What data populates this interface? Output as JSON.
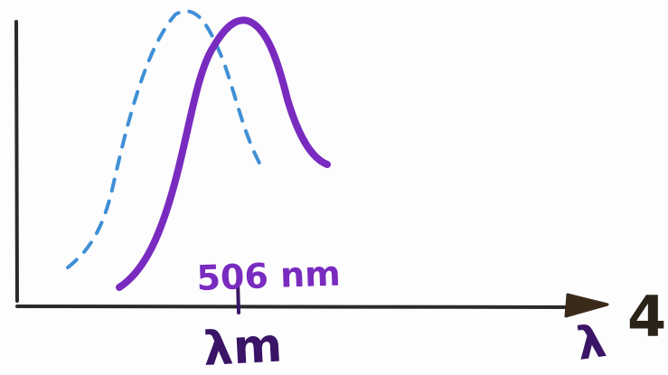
{
  "colors": {
    "background": "#fdfdfd",
    "axes": "#2a2a2a",
    "dashed_curve": "#3f8fd6",
    "solid_curve": "#7a2bbf",
    "peak_label": "#7a2bbf",
    "axis_label": "#3a1466",
    "arrow_head": "#3a2a1a",
    "side_mark": "#2a2418"
  },
  "labels": {
    "peak_wavelength": "506 nm",
    "x_axis_symbol": "λ",
    "peak_symbol": "λm",
    "side_mark": "4"
  },
  "curves": [
    {
      "style": "dashed",
      "color_key": "dashed_curve"
    },
    {
      "style": "solid",
      "color_key": "solid_curve"
    }
  ]
}
